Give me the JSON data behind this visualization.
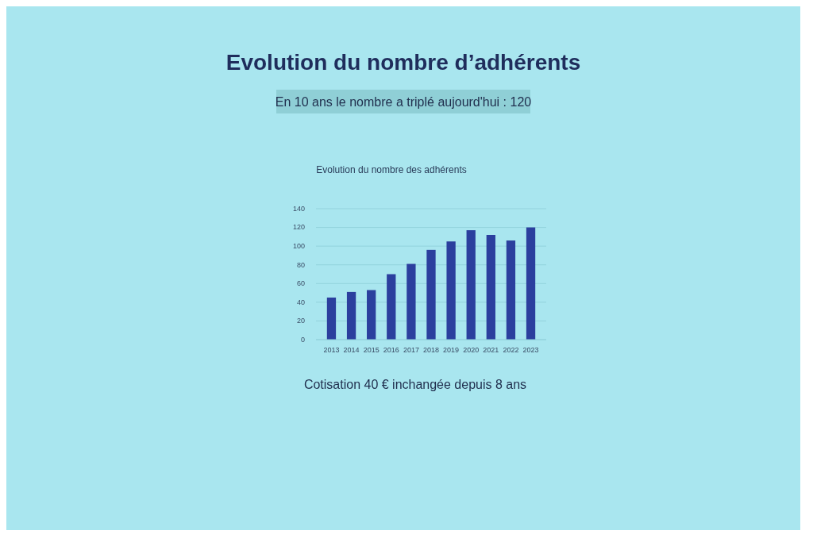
{
  "chart_data": {
    "type": "bar",
    "title": "Evolution du nombre d’adhérents",
    "subtitle": "Evolution du nombre des adhérents",
    "annotations": [
      "En 10 ans le nombre a triplé aujourd'hui : 120",
      "Cotisation 40 € inchangée depuis 8 ans"
    ],
    "categories": [
      "2013",
      "2014",
      "2015",
      "2016",
      "2017",
      "2018",
      "2019",
      "2020",
      "2021",
      "2022",
      "2023"
    ],
    "values": [
      45,
      51,
      53,
      70,
      81,
      96,
      105,
      117,
      112,
      106,
      120
    ],
    "color": "#2b3f9e",
    "ylim": [
      0,
      140
    ],
    "yticks": [
      0,
      20,
      40,
      60,
      80,
      100,
      120,
      140
    ],
    "grid": "y"
  }
}
